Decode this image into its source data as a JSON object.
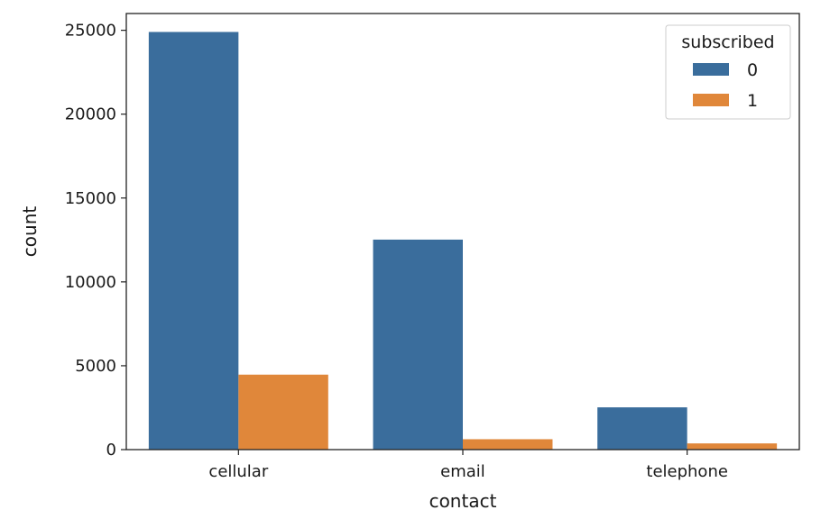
{
  "chart_data": {
    "type": "bar",
    "categories": [
      "cellular",
      "email",
      "telephone"
    ],
    "series": [
      {
        "name": "0",
        "values": [
          24900,
          12520,
          2520
        ],
        "color": "#3a6d9c"
      },
      {
        "name": "1",
        "values": [
          4470,
          620,
          370
        ],
        "color": "#e0873a"
      }
    ],
    "xlabel": "contact",
    "ylabel": "count",
    "ylim": [
      0,
      26000
    ],
    "yticks": [
      0,
      5000,
      10000,
      15000,
      20000,
      25000
    ],
    "legend": {
      "title": "subscribed",
      "placement": "top-right"
    },
    "grid": false
  }
}
